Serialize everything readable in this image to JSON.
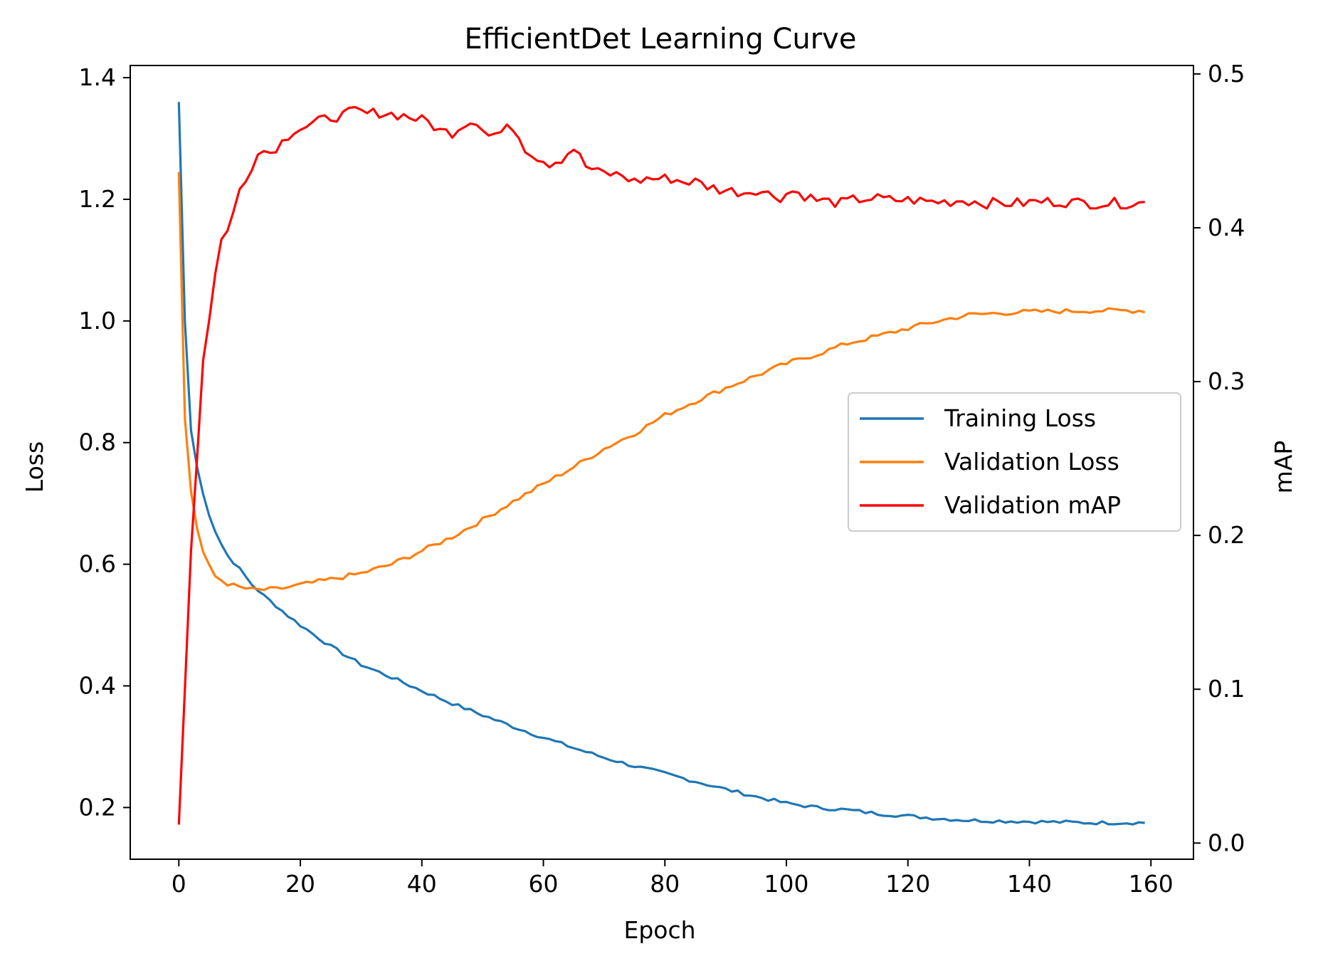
{
  "chart_data": {
    "type": "line",
    "title": "EfficientDet Learning Curve",
    "xlabel": "Epoch",
    "ylabel": "Loss",
    "y2label": "mAP",
    "xlim": [
      -8,
      167
    ],
    "ylim": [
      0.115,
      1.42
    ],
    "y2lim": [
      -0.0105,
      0.5055
    ],
    "xticks": [
      0,
      20,
      40,
      60,
      80,
      100,
      120,
      140,
      160
    ],
    "yticks": [
      0.2,
      0.4,
      0.6,
      0.8,
      1.0,
      1.2,
      1.4
    ],
    "y2ticks": [
      0.0,
      0.1,
      0.2,
      0.3,
      0.4,
      0.5
    ],
    "grid": false,
    "legend_position": "center-right",
    "series": [
      {
        "name": "Training Loss",
        "axis": "left",
        "color": "#1f77b4",
        "anchors": [
          [
            0,
            1.36
          ],
          [
            1,
            1.0
          ],
          [
            2,
            0.82
          ],
          [
            3,
            0.76
          ],
          [
            4,
            0.715
          ],
          [
            5,
            0.682
          ],
          [
            6,
            0.655
          ],
          [
            7,
            0.633
          ],
          [
            8,
            0.615
          ],
          [
            10,
            0.592
          ],
          [
            12,
            0.567
          ],
          [
            14,
            0.548
          ],
          [
            16,
            0.532
          ],
          [
            18,
            0.515
          ],
          [
            20,
            0.5
          ],
          [
            25,
            0.465
          ],
          [
            30,
            0.435
          ],
          [
            35,
            0.414
          ],
          [
            40,
            0.392
          ],
          [
            45,
            0.371
          ],
          [
            50,
            0.352
          ],
          [
            55,
            0.333
          ],
          [
            60,
            0.315
          ],
          [
            65,
            0.298
          ],
          [
            70,
            0.282
          ],
          [
            75,
            0.268
          ],
          [
            80,
            0.256
          ],
          [
            85,
            0.243
          ],
          [
            90,
            0.23
          ],
          [
            95,
            0.218
          ],
          [
            100,
            0.207
          ],
          [
            105,
            0.2
          ],
          [
            110,
            0.196
          ],
          [
            115,
            0.19
          ],
          [
            120,
            0.186
          ],
          [
            125,
            0.182
          ],
          [
            130,
            0.179
          ],
          [
            140,
            0.177
          ],
          [
            150,
            0.175
          ],
          [
            159,
            0.175
          ]
        ],
        "noise": 0.003
      },
      {
        "name": "Validation Loss",
        "axis": "left",
        "color": "#ff7f0e",
        "anchors": [
          [
            0,
            1.245
          ],
          [
            1,
            0.84
          ],
          [
            2,
            0.72
          ],
          [
            3,
            0.66
          ],
          [
            4,
            0.62
          ],
          [
            5,
            0.596
          ],
          [
            6,
            0.58
          ],
          [
            8,
            0.568
          ],
          [
            10,
            0.562
          ],
          [
            12,
            0.558
          ],
          [
            14,
            0.558
          ],
          [
            16,
            0.559
          ],
          [
            18,
            0.562
          ],
          [
            20,
            0.566
          ],
          [
            25,
            0.575
          ],
          [
            30,
            0.585
          ],
          [
            35,
            0.6
          ],
          [
            40,
            0.622
          ],
          [
            45,
            0.645
          ],
          [
            50,
            0.673
          ],
          [
            55,
            0.703
          ],
          [
            60,
            0.732
          ],
          [
            65,
            0.76
          ],
          [
            70,
            0.79
          ],
          [
            75,
            0.815
          ],
          [
            80,
            0.845
          ],
          [
            85,
            0.868
          ],
          [
            90,
            0.89
          ],
          [
            95,
            0.91
          ],
          [
            100,
            0.93
          ],
          [
            105,
            0.945
          ],
          [
            110,
            0.963
          ],
          [
            115,
            0.975
          ],
          [
            120,
            0.988
          ],
          [
            125,
            1.0
          ],
          [
            130,
            1.01
          ],
          [
            135,
            1.013
          ],
          [
            140,
            1.015
          ],
          [
            150,
            1.017
          ],
          [
            159,
            1.017
          ]
        ],
        "noise": 0.004
      },
      {
        "name": "Validation mAP",
        "axis": "right",
        "color": "#ff0000",
        "anchors": [
          [
            0,
            0.012
          ],
          [
            1,
            0.1
          ],
          [
            2,
            0.19
          ],
          [
            3,
            0.25
          ],
          [
            4,
            0.315
          ],
          [
            5,
            0.342
          ],
          [
            6,
            0.37
          ],
          [
            7,
            0.392
          ],
          [
            8,
            0.4
          ],
          [
            9,
            0.41
          ],
          [
            10,
            0.424
          ],
          [
            11,
            0.43
          ],
          [
            12,
            0.44
          ],
          [
            13,
            0.451
          ],
          [
            15,
            0.449
          ],
          [
            17,
            0.456
          ],
          [
            19,
            0.464
          ],
          [
            21,
            0.466
          ],
          [
            23,
            0.469
          ],
          [
            25,
            0.472
          ],
          [
            27,
            0.473
          ],
          [
            29,
            0.476
          ],
          [
            31,
            0.474
          ],
          [
            33,
            0.475
          ],
          [
            35,
            0.474
          ],
          [
            37,
            0.473
          ],
          [
            39,
            0.471
          ],
          [
            41,
            0.469
          ],
          [
            43,
            0.463
          ],
          [
            45,
            0.462
          ],
          [
            47,
            0.468
          ],
          [
            49,
            0.47
          ],
          [
            51,
            0.46
          ],
          [
            53,
            0.462
          ],
          [
            55,
            0.466
          ],
          [
            57,
            0.452
          ],
          [
            59,
            0.446
          ],
          [
            61,
            0.442
          ],
          [
            63,
            0.445
          ],
          [
            65,
            0.452
          ],
          [
            67,
            0.44
          ],
          [
            69,
            0.436
          ],
          [
            71,
            0.435
          ],
          [
            73,
            0.434
          ],
          [
            75,
            0.43
          ],
          [
            77,
            0.432
          ],
          [
            79,
            0.432
          ],
          [
            81,
            0.432
          ],
          [
            83,
            0.43
          ],
          [
            85,
            0.43
          ],
          [
            87,
            0.427
          ],
          [
            89,
            0.425
          ],
          [
            91,
            0.424
          ],
          [
            93,
            0.423
          ],
          [
            95,
            0.425
          ],
          [
            97,
            0.422
          ],
          [
            99,
            0.42
          ],
          [
            101,
            0.424
          ],
          [
            103,
            0.421
          ],
          [
            105,
            0.418
          ],
          [
            107,
            0.417
          ],
          [
            109,
            0.416
          ],
          [
            111,
            0.418
          ],
          [
            113,
            0.419
          ],
          [
            115,
            0.419
          ],
          [
            117,
            0.418
          ],
          [
            119,
            0.418
          ],
          [
            121,
            0.418
          ],
          [
            123,
            0.417
          ],
          [
            125,
            0.417
          ],
          [
            127,
            0.417
          ],
          [
            129,
            0.418
          ],
          [
            131,
            0.417
          ],
          [
            133,
            0.416
          ],
          [
            135,
            0.416
          ],
          [
            137,
            0.416
          ],
          [
            139,
            0.416
          ],
          [
            141,
            0.417
          ],
          [
            145,
            0.417
          ],
          [
            150,
            0.416
          ],
          [
            155,
            0.416
          ],
          [
            159,
            0.416
          ]
        ],
        "noise": 0.0035
      }
    ]
  }
}
